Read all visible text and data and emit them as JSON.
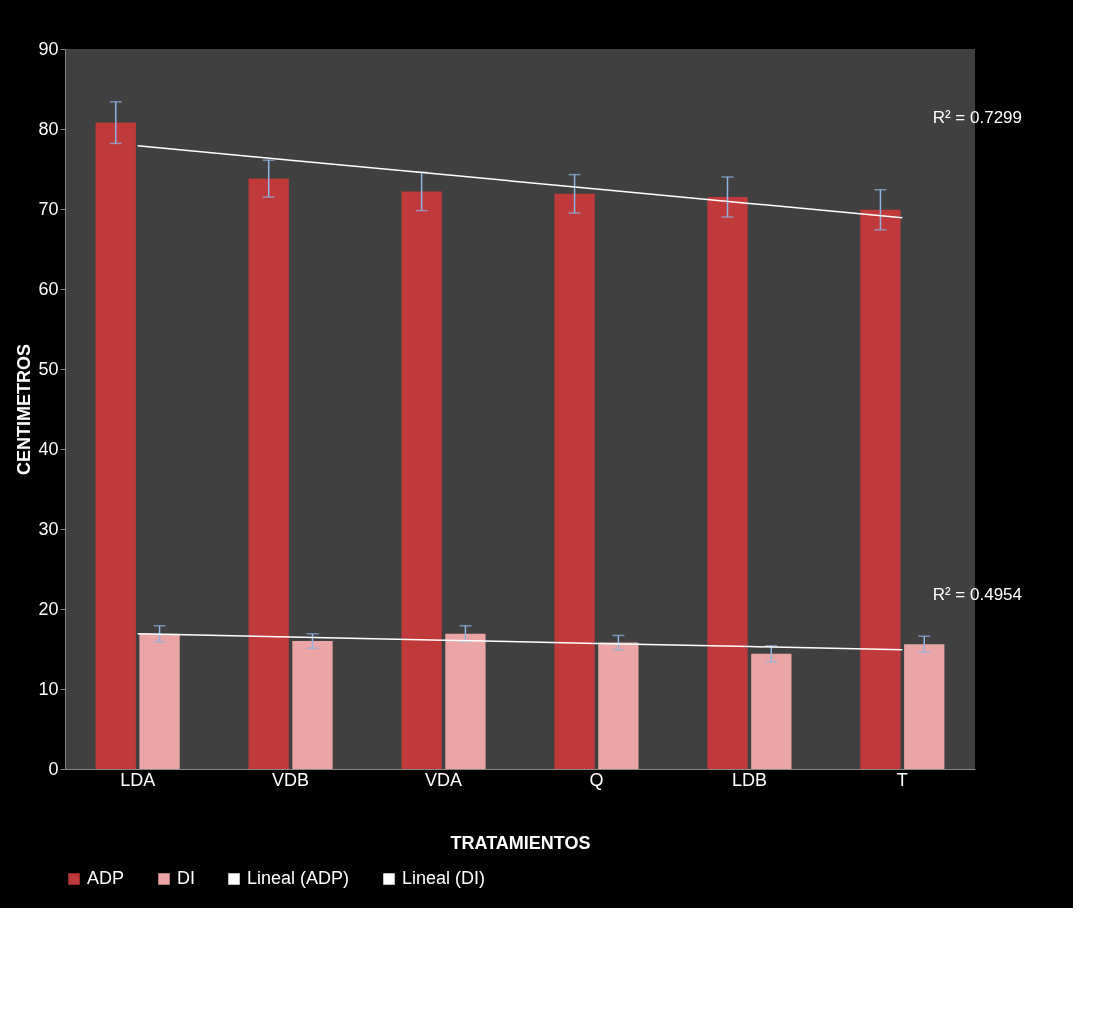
{
  "chart_data": {
    "type": "bar",
    "xlabel": "TRATAMIENTOS",
    "ylabel": "CENTIMETROS",
    "categories": [
      "LDA",
      "VDB",
      "VDA",
      "Q",
      "LDB",
      "T"
    ],
    "series": [
      {
        "name": "ADP",
        "color": "#c0393b",
        "values": [
          80.8,
          73.8,
          72.2,
          71.9,
          71.5,
          69.9
        ],
        "errors": [
          2.6,
          2.3,
          2.4,
          2.4,
          2.5,
          2.5
        ]
      },
      {
        "name": "DI",
        "color": "#eba5a5",
        "values": [
          16.9,
          16.0,
          16.9,
          15.8,
          14.4,
          15.6
        ],
        "errors": [
          1.0,
          0.9,
          1.0,
          0.9,
          1.0,
          1.0
        ]
      },
      {
        "name": "Lineal (ADP)",
        "type": "line",
        "color": "#ffffff",
        "values": [
          77.9,
          76.1,
          74.3,
          72.5,
          70.7,
          68.9
        ]
      },
      {
        "name": "Lineal (DI)",
        "type": "line",
        "color": "#ffffff",
        "values": [
          16.9,
          16.5,
          16.1,
          15.7,
          15.3,
          14.9
        ]
      }
    ],
    "annotations": [
      "R² = 0.7299",
      "R² = 0.4954"
    ],
    "ylim": [
      0,
      90
    ],
    "yticks": [
      0,
      10,
      20,
      30,
      40,
      50,
      60,
      70,
      80,
      90
    ],
    "grid": false,
    "legend": "bottom"
  }
}
